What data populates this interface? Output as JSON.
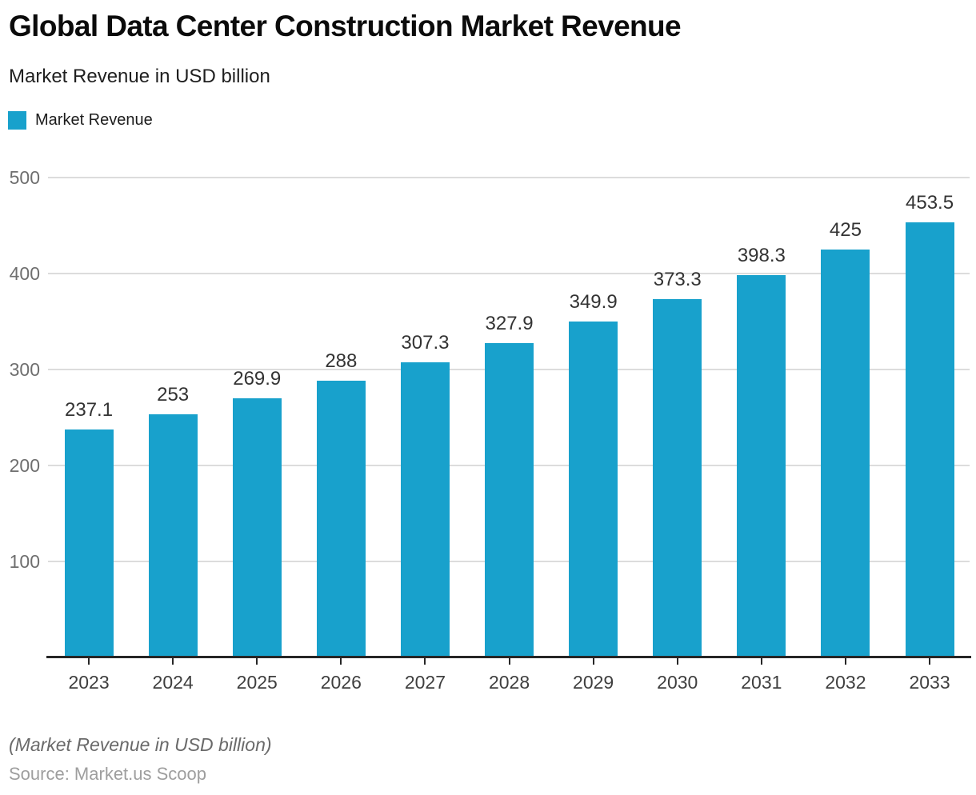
{
  "header": {
    "title": "Global Data Center Construction Market Revenue",
    "subtitle": "Market Revenue in USD billion",
    "legend": [
      {
        "label": "Market Revenue",
        "color": "#18A1CC"
      }
    ]
  },
  "chart_data": {
    "type": "bar",
    "title": "Global Data Center Construction Market Revenue",
    "subtitle": "Market Revenue in USD billion",
    "categories": [
      "2023",
      "2024",
      "2025",
      "2026",
      "2027",
      "2028",
      "2029",
      "2030",
      "2031",
      "2032",
      "2033"
    ],
    "series": [
      {
        "name": "Market Revenue",
        "color": "#18A1CC",
        "values": [
          237.1,
          253,
          269.9,
          288,
          307.3,
          327.9,
          349.9,
          373.3,
          398.3,
          425,
          453.5
        ],
        "value_labels": [
          "237.1",
          "253",
          "269.9",
          "288",
          "307.3",
          "327.9",
          "349.9",
          "373.3",
          "398.3",
          "425",
          "453.5"
        ]
      }
    ],
    "xlabel": "",
    "ylabel": "Market Revenue in USD billion",
    "ylim": [
      0,
      500
    ],
    "yticks": [
      100,
      200,
      300,
      400,
      500
    ],
    "grid": true,
    "value_labels_shown": true,
    "legend_position": "top-left"
  },
  "footer": {
    "note": "(Market Revenue in USD billion)",
    "source": "Source: Market.us Scoop"
  },
  "colors": {
    "bar": "#18A1CC",
    "gridline": "#dcdcdc",
    "axis": "#262626",
    "y_tick_label": "#6f6f6f",
    "x_tick_label": "#3f3f3f",
    "value_label": "#333333",
    "title": "#0b0b0b",
    "footnote": "#6a6a6a",
    "source": "#9e9e9e"
  }
}
